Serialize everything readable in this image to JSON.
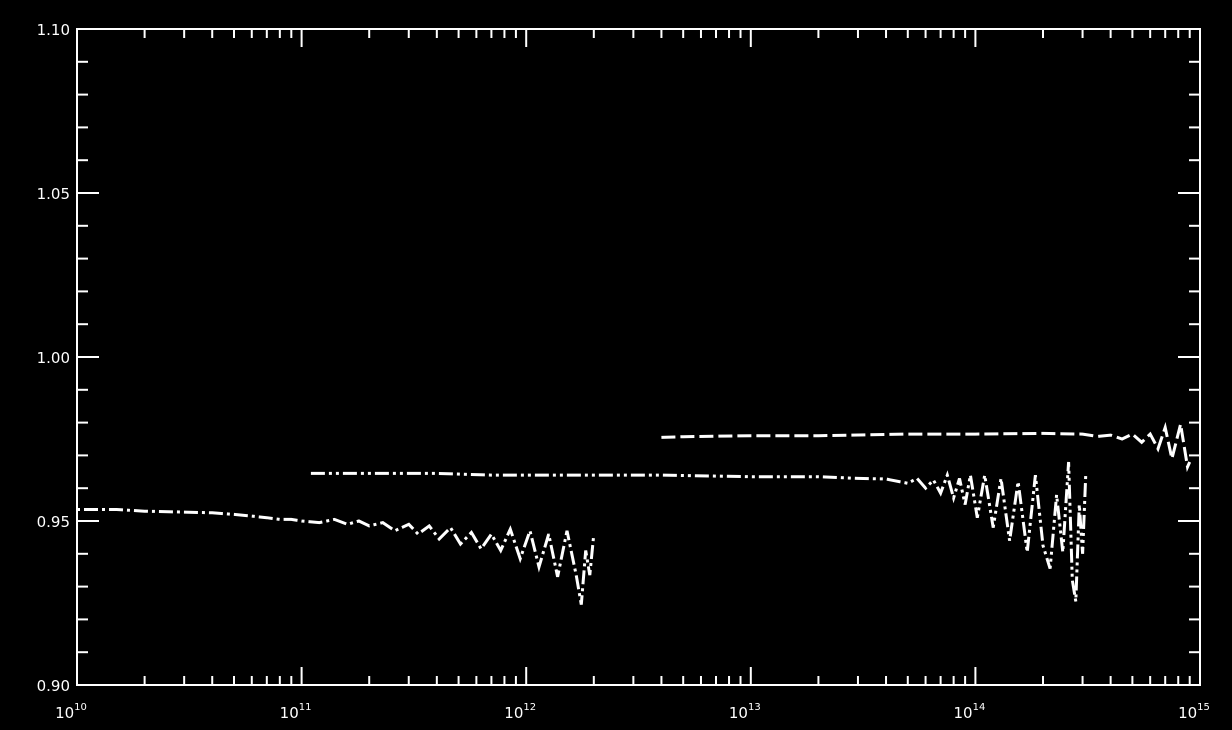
{
  "chart_data": {
    "type": "line",
    "title": "",
    "xlabel": "",
    "ylabel": "",
    "x_scale": "log",
    "xlim": [
      10000000000.0,
      1000000000000000.0
    ],
    "ylim": [
      0.9,
      1.1
    ],
    "grid": false,
    "legend": "none",
    "x_tick_labels": [
      {
        "base": "10",
        "exp": "10",
        "value": 10000000000.0
      },
      {
        "base": "10",
        "exp": "11",
        "value": 100000000000.0
      },
      {
        "base": "10",
        "exp": "12",
        "value": 1000000000000.0
      },
      {
        "base": "10",
        "exp": "13",
        "value": 10000000000000.0
      },
      {
        "base": "10",
        "exp": "14",
        "value": 100000000000000.0
      },
      {
        "base": "10",
        "exp": "15",
        "value": 1000000000000000.0
      }
    ],
    "y_tick_labels": [
      "0.90",
      "0.95",
      "1.00",
      "1.05",
      "1.10"
    ],
    "y_tick_values": [
      0.9,
      0.95,
      1.0,
      1.05,
      1.1
    ],
    "y_minor_step": 0.01,
    "colors": {
      "background": "#000000",
      "axes": "#ffffff",
      "series": "#ffffff"
    },
    "series": [
      {
        "dash": "dot-dash",
        "points": [
          [
            10000000000.0,
            0.9535
          ],
          [
            15000000000.0,
            0.9535
          ],
          [
            20000000000.0,
            0.953
          ],
          [
            30000000000.0,
            0.9527
          ],
          [
            40000000000.0,
            0.9525
          ],
          [
            50000000000.0,
            0.952
          ],
          [
            60000000000.0,
            0.9515
          ],
          [
            70000000000.0,
            0.951
          ],
          [
            80000000000.0,
            0.9505
          ],
          [
            90000000000.0,
            0.9505
          ],
          [
            100000000000.0,
            0.95
          ],
          [
            120000000000.0,
            0.9495
          ],
          [
            140000000000.0,
            0.9505
          ],
          [
            160000000000.0,
            0.949
          ],
          [
            180000000000.0,
            0.95
          ],
          [
            200000000000.0,
            0.9485
          ],
          [
            230000000000.0,
            0.9495
          ],
          [
            260000000000.0,
            0.947
          ],
          [
            300000000000.0,
            0.949
          ],
          [
            330000000000.0,
            0.946
          ],
          [
            370000000000.0,
            0.9485
          ],
          [
            410000000000.0,
            0.9445
          ],
          [
            460000000000.0,
            0.948
          ],
          [
            510000000000.0,
            0.943
          ],
          [
            570000000000.0,
            0.9465
          ],
          [
            630000000000.0,
            0.9415
          ],
          [
            700000000000.0,
            0.946
          ],
          [
            770000000000.0,
            0.941
          ],
          [
            850000000000.0,
            0.9475
          ],
          [
            940000000000.0,
            0.9385
          ],
          [
            1040000000000.0,
            0.947
          ],
          [
            1140000000000.0,
            0.936
          ],
          [
            1260000000000.0,
            0.946
          ],
          [
            1380000000000.0,
            0.933
          ],
          [
            1520000000000.0,
            0.947
          ],
          [
            1670000000000.0,
            0.9335
          ],
          [
            1760000000000.0,
            0.9245
          ],
          [
            1840000000000.0,
            0.941
          ],
          [
            1920000000000.0,
            0.9335
          ],
          [
            2000000000000.0,
            0.946
          ]
        ]
      },
      {
        "dash": "dash-dot-dot",
        "points": [
          [
            110000000000.0,
            0.9645
          ],
          [
            200000000000.0,
            0.9645
          ],
          [
            400000000000.0,
            0.9645
          ],
          [
            700000000000.0,
            0.964
          ],
          [
            1000000000000.0,
            0.964
          ],
          [
            2000000000000.0,
            0.964
          ],
          [
            4000000000000.0,
            0.964
          ],
          [
            7000000000000.0,
            0.9637
          ],
          [
            10000000000000.0,
            0.9635
          ],
          [
            15000000000000.0,
            0.9635
          ],
          [
            20000000000000.0,
            0.9635
          ],
          [
            30000000000000.0,
            0.963
          ],
          [
            40000000000000.0,
            0.9628
          ],
          [
            50000000000000.0,
            0.9615
          ],
          [
            55000000000000.0,
            0.963
          ],
          [
            60000000000000.0,
            0.96
          ],
          [
            65000000000000.0,
            0.9625
          ],
          [
            70000000000000.0,
            0.9585
          ],
          [
            75000000000000.0,
            0.964
          ],
          [
            80000000000000.0,
            0.957
          ],
          [
            85000000000000.0,
            0.963
          ],
          [
            90000000000000.0,
            0.955
          ],
          [
            95000000000000.0,
            0.964
          ],
          [
            102000000000000.0,
            0.951
          ],
          [
            110000000000000.0,
            0.964
          ],
          [
            120000000000000.0,
            0.948
          ],
          [
            130000000000000.0,
            0.963
          ],
          [
            142000000000000.0,
            0.944
          ],
          [
            155000000000000.0,
            0.962
          ],
          [
            170000000000000.0,
            0.9405
          ],
          [
            185000000000000.0,
            0.964
          ],
          [
            200000000000000.0,
            0.9425
          ],
          [
            215000000000000.0,
            0.9355
          ],
          [
            230000000000000.0,
            0.958
          ],
          [
            245000000000000.0,
            0.9405
          ],
          [
            260000000000000.0,
            0.968
          ],
          [
            270000000000000.0,
            0.932
          ],
          [
            280000000000000.0,
            0.9255
          ],
          [
            290000000000000.0,
            0.955
          ],
          [
            300000000000000.0,
            0.94
          ],
          [
            310000000000000.0,
            0.9645
          ]
        ]
      },
      {
        "dash": "dash",
        "points": [
          [
            4000000000000.0,
            0.9755
          ],
          [
            5000000000000.0,
            0.9757
          ],
          [
            10000000000000.0,
            0.976
          ],
          [
            20000000000000.0,
            0.976
          ],
          [
            50000000000000.0,
            0.9765
          ],
          [
            100000000000000.0,
            0.9765
          ],
          [
            200000000000000.0,
            0.9767
          ],
          [
            300000000000000.0,
            0.9765
          ],
          [
            350000000000000.0,
            0.9758
          ],
          [
            400000000000000.0,
            0.9762
          ],
          [
            450000000000000.0,
            0.975
          ],
          [
            500000000000000.0,
            0.9765
          ],
          [
            550000000000000.0,
            0.974
          ],
          [
            600000000000000.0,
            0.9765
          ],
          [
            650000000000000.0,
            0.972
          ],
          [
            700000000000000.0,
            0.9785
          ],
          [
            750000000000000.0,
            0.969
          ],
          [
            820000000000000.0,
            0.9795
          ],
          [
            880000000000000.0,
            0.9665
          ],
          [
            900000000000000.0,
            0.968
          ]
        ]
      }
    ]
  }
}
